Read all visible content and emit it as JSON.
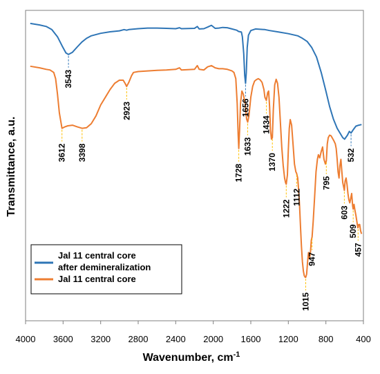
{
  "chart_data": {
    "type": "line",
    "title": "",
    "xlabel": "Wavenumber, cm",
    "xlabel_superscript": "-1",
    "ylabel": "Transmittance, a.u.",
    "xlim": [
      4000,
      400
    ],
    "x_reversed": true,
    "y_ticks_shown": false,
    "grid": false,
    "legend_position": "lower-left",
    "xticks": [
      {
        "value": 4000,
        "label": "4000"
      },
      {
        "value": 3600,
        "label": "3600"
      },
      {
        "value": 3200,
        "label": "3200"
      },
      {
        "value": 2800,
        "label": "2800"
      },
      {
        "value": 2400,
        "label": "2400"
      },
      {
        "value": 2000,
        "label": "2000"
      },
      {
        "value": 1600,
        "label": "1600"
      },
      {
        "value": 1200,
        "label": "1200"
      },
      {
        "value": 800,
        "label": "800"
      },
      {
        "value": 400,
        "label": "400"
      }
    ],
    "series": [
      {
        "name": "Jal 11 central core after demineralization",
        "color": "#2e75b6",
        "points": [
          [
            3950,
            0.958
          ],
          [
            3850,
            0.953
          ],
          [
            3780,
            0.948
          ],
          [
            3720,
            0.938
          ],
          [
            3660,
            0.915
          ],
          [
            3610,
            0.885
          ],
          [
            3570,
            0.863
          ],
          [
            3543,
            0.858
          ],
          [
            3500,
            0.865
          ],
          [
            3450,
            0.882
          ],
          [
            3400,
            0.898
          ],
          [
            3350,
            0.91
          ],
          [
            3300,
            0.918
          ],
          [
            3200,
            0.926
          ],
          [
            3100,
            0.931
          ],
          [
            3000,
            0.934
          ],
          [
            2950,
            0.938
          ],
          [
            2923,
            0.936
          ],
          [
            2900,
            0.938
          ],
          [
            2800,
            0.941
          ],
          [
            2700,
            0.943
          ],
          [
            2600,
            0.943
          ],
          [
            2500,
            0.942
          ],
          [
            2400,
            0.941
          ],
          [
            2360,
            0.944
          ],
          [
            2340,
            0.941
          ],
          [
            2200,
            0.942
          ],
          [
            2170,
            0.948
          ],
          [
            2150,
            0.94
          ],
          [
            2100,
            0.941
          ],
          [
            2060,
            0.946
          ],
          [
            2020,
            0.952
          ],
          [
            1980,
            0.942
          ],
          [
            1940,
            0.943
          ],
          [
            1900,
            0.945
          ],
          [
            1850,
            0.944
          ],
          [
            1800,
            0.94
          ],
          [
            1750,
            0.936
          ],
          [
            1730,
            0.932
          ],
          [
            1700,
            0.93
          ],
          [
            1690,
            0.915
          ],
          [
            1675,
            0.86
          ],
          [
            1665,
            0.79
          ],
          [
            1656,
            0.765
          ],
          [
            1648,
            0.8
          ],
          [
            1638,
            0.88
          ],
          [
            1625,
            0.92
          ],
          [
            1600,
            0.935
          ],
          [
            1550,
            0.94
          ],
          [
            1450,
            0.938
          ],
          [
            1400,
            0.935
          ],
          [
            1300,
            0.93
          ],
          [
            1200,
            0.925
          ],
          [
            1100,
            0.918
          ],
          [
            1050,
            0.91
          ],
          [
            1000,
            0.9
          ],
          [
            950,
            0.88
          ],
          [
            900,
            0.85
          ],
          [
            850,
            0.8
          ],
          [
            800,
            0.74
          ],
          [
            760,
            0.69
          ],
          [
            720,
            0.65
          ],
          [
            680,
            0.62
          ],
          [
            640,
            0.6
          ],
          [
            620,
            0.59
          ],
          [
            600,
            0.585
          ],
          [
            570,
            0.598
          ],
          [
            550,
            0.61
          ],
          [
            532,
            0.605
          ],
          [
            510,
            0.615
          ],
          [
            480,
            0.627
          ],
          [
            450,
            0.63
          ],
          [
            420,
            0.632
          ]
        ]
      },
      {
        "name": "Jal 11 central core",
        "color": "#ed7d31",
        "points": [
          [
            3950,
            0.82
          ],
          [
            3850,
            0.815
          ],
          [
            3780,
            0.81
          ],
          [
            3740,
            0.808
          ],
          [
            3700,
            0.8
          ],
          [
            3680,
            0.78
          ],
          [
            3660,
            0.73
          ],
          [
            3640,
            0.67
          ],
          [
            3612,
            0.62
          ],
          [
            3580,
            0.625
          ],
          [
            3550,
            0.628
          ],
          [
            3500,
            0.63
          ],
          [
            3450,
            0.625
          ],
          [
            3398,
            0.62
          ],
          [
            3350,
            0.622
          ],
          [
            3300,
            0.635
          ],
          [
            3250,
            0.66
          ],
          [
            3200,
            0.695
          ],
          [
            3150,
            0.72
          ],
          [
            3100,
            0.745
          ],
          [
            3050,
            0.765
          ],
          [
            3000,
            0.775
          ],
          [
            2960,
            0.775
          ],
          [
            2940,
            0.765
          ],
          [
            2923,
            0.755
          ],
          [
            2900,
            0.768
          ],
          [
            2870,
            0.79
          ],
          [
            2850,
            0.8
          ],
          [
            2800,
            0.803
          ],
          [
            2700,
            0.805
          ],
          [
            2600,
            0.807
          ],
          [
            2500,
            0.808
          ],
          [
            2400,
            0.81
          ],
          [
            2360,
            0.815
          ],
          [
            2340,
            0.808
          ],
          [
            2200,
            0.81
          ],
          [
            2170,
            0.822
          ],
          [
            2150,
            0.81
          ],
          [
            2100,
            0.808
          ],
          [
            2060,
            0.818
          ],
          [
            2020,
            0.822
          ],
          [
            1980,
            0.815
          ],
          [
            1940,
            0.812
          ],
          [
            1900,
            0.812
          ],
          [
            1850,
            0.81
          ],
          [
            1800,
            0.805
          ],
          [
            1780,
            0.8
          ],
          [
            1760,
            0.78
          ],
          [
            1745,
            0.7
          ],
          [
            1735,
            0.6
          ],
          [
            1728,
            0.555
          ],
          [
            1720,
            0.61
          ],
          [
            1710,
            0.7
          ],
          [
            1695,
            0.74
          ],
          [
            1680,
            0.73
          ],
          [
            1660,
            0.7
          ],
          [
            1645,
            0.65
          ],
          [
            1633,
            0.64
          ],
          [
            1620,
            0.66
          ],
          [
            1600,
            0.72
          ],
          [
            1580,
            0.755
          ],
          [
            1560,
            0.772
          ],
          [
            1540,
            0.777
          ],
          [
            1520,
            0.78
          ],
          [
            1500,
            0.776
          ],
          [
            1480,
            0.768
          ],
          [
            1460,
            0.745
          ],
          [
            1450,
            0.72
          ],
          [
            1434,
            0.71
          ],
          [
            1420,
            0.735
          ],
          [
            1410,
            0.74
          ],
          [
            1400,
            0.69
          ],
          [
            1390,
            0.615
          ],
          [
            1380,
            0.585
          ],
          [
            1370,
            0.59
          ],
          [
            1360,
            0.68
          ],
          [
            1345,
            0.76
          ],
          [
            1330,
            0.778
          ],
          [
            1315,
            0.765
          ],
          [
            1300,
            0.72
          ],
          [
            1285,
            0.64
          ],
          [
            1270,
            0.56
          ],
          [
            1255,
            0.5
          ],
          [
            1240,
            0.46
          ],
          [
            1230,
            0.445
          ],
          [
            1222,
            0.44
          ],
          [
            1210,
            0.47
          ],
          [
            1200,
            0.55
          ],
          [
            1190,
            0.62
          ],
          [
            1180,
            0.648
          ],
          [
            1165,
            0.63
          ],
          [
            1150,
            0.57
          ],
          [
            1135,
            0.505
          ],
          [
            1120,
            0.48
          ],
          [
            1112,
            0.475
          ],
          [
            1100,
            0.46
          ],
          [
            1090,
            0.42
          ],
          [
            1080,
            0.37
          ],
          [
            1070,
            0.3
          ],
          [
            1060,
            0.24
          ],
          [
            1050,
            0.19
          ],
          [
            1040,
            0.16
          ],
          [
            1030,
            0.145
          ],
          [
            1020,
            0.14
          ],
          [
            1015,
            0.14
          ],
          [
            1005,
            0.15
          ],
          [
            995,
            0.19
          ],
          [
            985,
            0.22
          ],
          [
            975,
            0.2
          ],
          [
            965,
            0.22
          ],
          [
            955,
            0.26
          ],
          [
            947,
            0.27
          ],
          [
            935,
            0.32
          ],
          [
            920,
            0.4
          ],
          [
            905,
            0.48
          ],
          [
            890,
            0.52
          ],
          [
            880,
            0.535
          ],
          [
            865,
            0.525
          ],
          [
            850,
            0.545
          ],
          [
            835,
            0.56
          ],
          [
            820,
            0.52
          ],
          [
            805,
            0.505
          ],
          [
            795,
            0.515
          ],
          [
            785,
            0.57
          ],
          [
            775,
            0.59
          ],
          [
            760,
            0.598
          ],
          [
            745,
            0.596
          ],
          [
            730,
            0.588
          ],
          [
            715,
            0.58
          ],
          [
            700,
            0.57
          ],
          [
            690,
            0.555
          ],
          [
            680,
            0.52
          ],
          [
            670,
            0.48
          ],
          [
            660,
            0.46
          ],
          [
            650,
            0.5
          ],
          [
            640,
            0.52
          ],
          [
            630,
            0.48
          ],
          [
            620,
            0.445
          ],
          [
            610,
            0.43
          ],
          [
            603,
            0.42
          ],
          [
            595,
            0.45
          ],
          [
            585,
            0.46
          ],
          [
            575,
            0.44
          ],
          [
            565,
            0.41
          ],
          [
            555,
            0.39
          ],
          [
            545,
            0.38
          ],
          [
            535,
            0.395
          ],
          [
            525,
            0.41
          ],
          [
            515,
            0.37
          ],
          [
            509,
            0.36
          ],
          [
            500,
            0.375
          ],
          [
            490,
            0.355
          ],
          [
            480,
            0.34
          ],
          [
            470,
            0.32
          ],
          [
            460,
            0.3
          ],
          [
            457,
            0.3
          ],
          [
            450,
            0.31
          ],
          [
            440,
            0.31
          ],
          [
            430,
            0.29
          ],
          [
            420,
            0.28
          ]
        ]
      }
    ],
    "annotations": [
      {
        "label": "3543",
        "x": 3543,
        "series": 0
      },
      {
        "label": "1656",
        "x": 1656,
        "series": 0
      },
      {
        "label": "532",
        "x": 532,
        "series": 0
      },
      {
        "label": "3612",
        "x": 3612,
        "series": 1
      },
      {
        "label": "3398",
        "x": 3398,
        "series": 1
      },
      {
        "label": "2923",
        "x": 2923,
        "series": 1
      },
      {
        "label": "1728",
        "x": 1728,
        "series": 1
      },
      {
        "label": "1633",
        "x": 1633,
        "series": 1
      },
      {
        "label": "1434",
        "x": 1434,
        "series": 1
      },
      {
        "label": "1370",
        "x": 1370,
        "series": 1
      },
      {
        "label": "1222",
        "x": 1222,
        "series": 1
      },
      {
        "label": "1112",
        "x": 1112,
        "series": 1
      },
      {
        "label": "1015",
        "x": 1015,
        "series": 1
      },
      {
        "label": "947",
        "x": 947,
        "series": 1
      },
      {
        "label": "795",
        "x": 795,
        "series": 1
      },
      {
        "label": "603",
        "x": 603,
        "series": 1
      },
      {
        "label": "509",
        "x": 509,
        "series": 1
      },
      {
        "label": "457",
        "x": 457,
        "series": 1
      }
    ],
    "legend": [
      {
        "label_lines": [
          "Jal 11 central core",
          "after demineralization"
        ],
        "color": "#2e75b6"
      },
      {
        "label_lines": [
          "Jal 11 central core"
        ],
        "color": "#ed7d31"
      }
    ]
  }
}
